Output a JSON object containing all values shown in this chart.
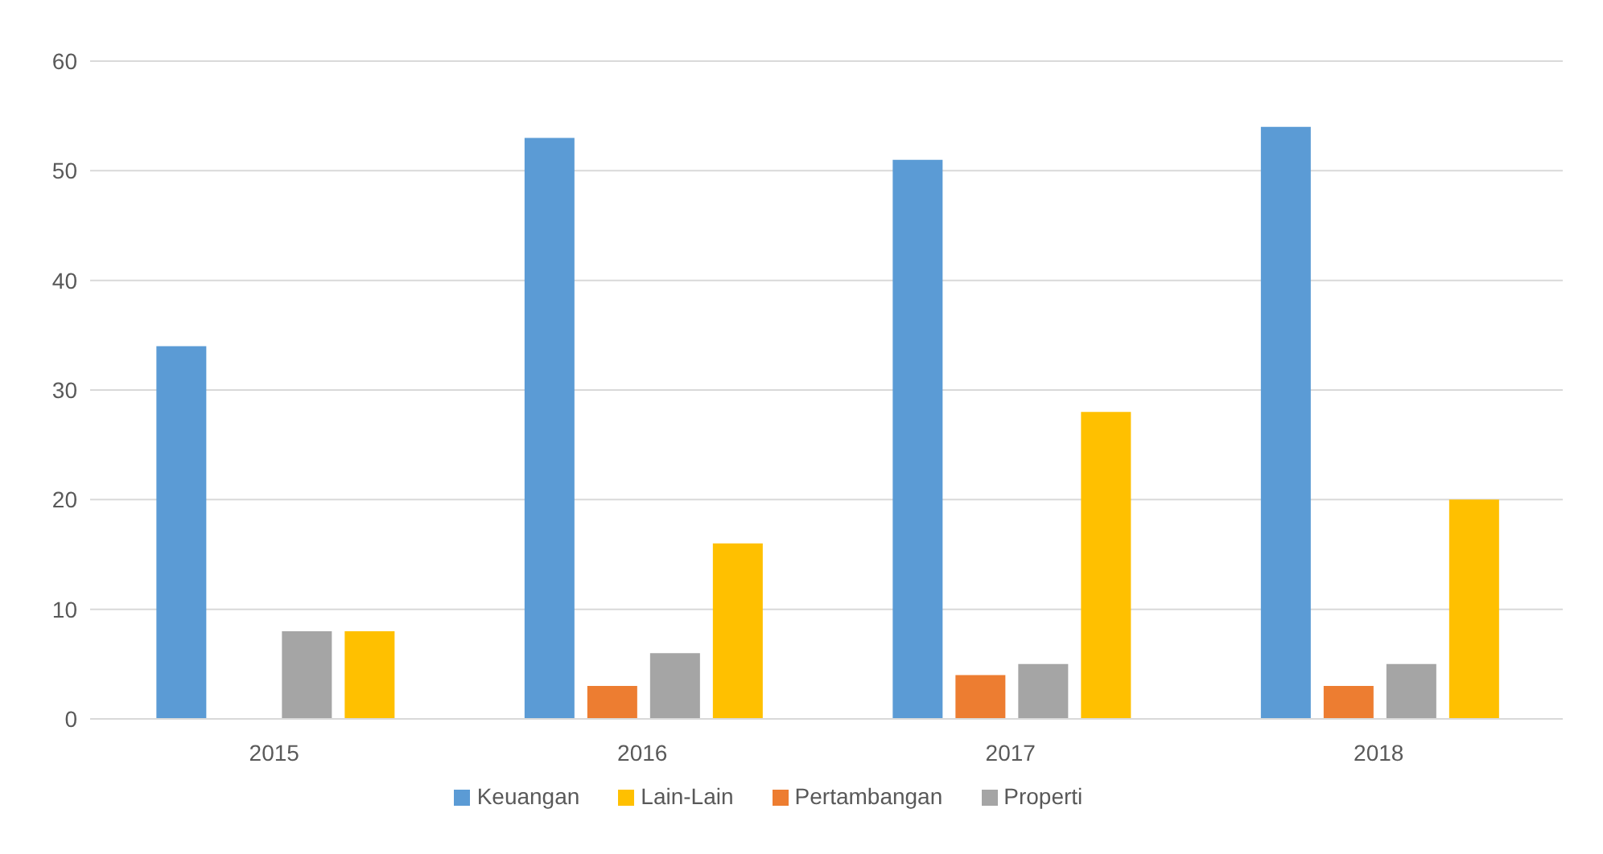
{
  "chart_data": {
    "type": "bar",
    "categories": [
      "2015",
      "2016",
      "2017",
      "2018"
    ],
    "series": [
      {
        "name": "Keuangan",
        "color": "#5b9bd5",
        "values": [
          34,
          53,
          51,
          54
        ]
      },
      {
        "name": "Pertambangan",
        "color": "#ed7d31",
        "values": [
          0,
          3,
          4,
          3
        ]
      },
      {
        "name": "Properti",
        "color": "#a5a5a5",
        "values": [
          8,
          6,
          5,
          5
        ]
      },
      {
        "name": "Lain-Lain",
        "color": "#ffc000",
        "values": [
          8,
          16,
          28,
          20
        ]
      }
    ],
    "ylim": [
      0,
      60
    ],
    "yticks": [
      0,
      10,
      20,
      30,
      40,
      50,
      60
    ],
    "grid": "y",
    "legend": "bottom"
  }
}
